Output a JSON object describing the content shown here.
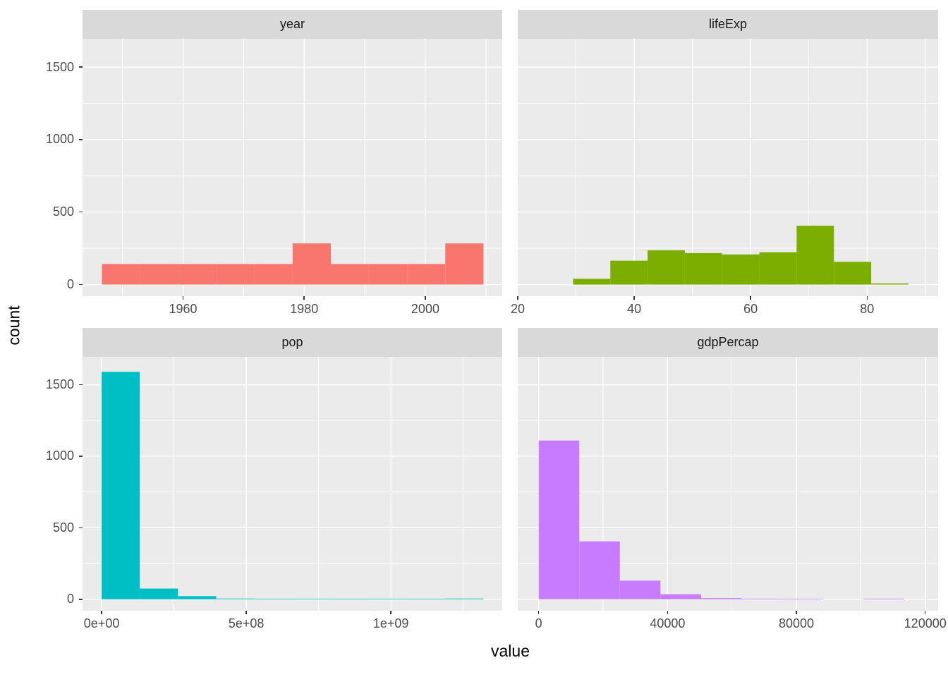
{
  "figure": {
    "background": "#FFFFFF",
    "panel_background": "#EBEBEB",
    "strip_background": "#D9D9D9",
    "strip_text_color": "#1A1A1A",
    "grid_major_color": "#FFFFFF",
    "grid_minor_color": "#FFFFFF",
    "axis_text_color": "#4D4D4D",
    "axis_title_color": "#000000",
    "tick_mark_color": "#333333"
  },
  "axes": {
    "x_title": "value",
    "y_title": "count",
    "y_ticks": [
      0,
      500,
      1000,
      1500
    ],
    "y_tick_labels": [
      "0",
      "500",
      "1000",
      "1500"
    ],
    "y_minor": [
      250,
      750,
      1250
    ],
    "ylim": [
      -80,
      1695
    ]
  },
  "chart_data": [
    {
      "type": "bar",
      "subtype": "histogram",
      "facet": "year",
      "fill": "#F8766D",
      "xlim": [
        1943.4,
        2012.7
      ],
      "x_ticks": [
        1960,
        1980,
        2000
      ],
      "x_tick_labels": [
        "1960",
        "1980",
        "2000"
      ],
      "x_minor": [
        1950,
        1970,
        1990,
        2010
      ],
      "bins": [
        {
          "from": 1946.6,
          "to": 1952.9,
          "count": 142
        },
        {
          "from": 1952.9,
          "to": 1959.2,
          "count": 142
        },
        {
          "from": 1959.2,
          "to": 1965.5,
          "count": 142
        },
        {
          "from": 1965.5,
          "to": 1971.8,
          "count": 142
        },
        {
          "from": 1971.8,
          "to": 1978.1,
          "count": 142
        },
        {
          "from": 1978.1,
          "to": 1984.4,
          "count": 284
        },
        {
          "from": 1984.4,
          "to": 1990.7,
          "count": 142
        },
        {
          "from": 1990.7,
          "to": 1997.0,
          "count": 142
        },
        {
          "from": 1997.0,
          "to": 2003.3,
          "count": 142
        },
        {
          "from": 2003.3,
          "to": 2009.6,
          "count": 284
        }
      ]
    },
    {
      "type": "bar",
      "subtype": "histogram",
      "facet": "lifeExp",
      "fill": "#7CAE00",
      "xlim": [
        20,
        92.2
      ],
      "x_ticks": [
        20,
        40,
        60,
        80
      ],
      "x_tick_labels": [
        "20",
        "40",
        "60",
        "80"
      ],
      "x_minor": [
        30,
        50,
        70,
        90
      ],
      "bins": [
        {
          "from": 29.5,
          "to": 35.9,
          "count": 40
        },
        {
          "from": 35.9,
          "to": 42.3,
          "count": 165
        },
        {
          "from": 42.3,
          "to": 48.7,
          "count": 237
        },
        {
          "from": 48.7,
          "to": 55.1,
          "count": 217
        },
        {
          "from": 55.1,
          "to": 61.5,
          "count": 208
        },
        {
          "from": 61.5,
          "to": 67.9,
          "count": 223
        },
        {
          "from": 67.9,
          "to": 74.3,
          "count": 406
        },
        {
          "from": 74.3,
          "to": 80.7,
          "count": 157
        },
        {
          "from": 80.7,
          "to": 87.1,
          "count": 8
        }
      ]
    },
    {
      "type": "bar",
      "subtype": "histogram",
      "facet": "pop",
      "fill": "#00BFC4",
      "xlim": [
        -66000000,
        1385000000
      ],
      "x_ticks": [
        0,
        500000000,
        1000000000
      ],
      "x_tick_labels": [
        "0e+00",
        "5e+08",
        "1e+09"
      ],
      "x_minor": [
        250000000,
        750000000,
        1250000000
      ],
      "bins": [
        {
          "from": 0,
          "to": 132000000,
          "count": 1590
        },
        {
          "from": 132000000,
          "to": 264000000,
          "count": 75
        },
        {
          "from": 264000000,
          "to": 396000000,
          "count": 22
        },
        {
          "from": 396000000,
          "to": 528000000,
          "count": 5
        },
        {
          "from": 528000000,
          "to": 660000000,
          "count": 3
        },
        {
          "from": 660000000,
          "to": 792000000,
          "count": 4
        },
        {
          "from": 792000000,
          "to": 924000000,
          "count": 3
        },
        {
          "from": 924000000,
          "to": 1056000000,
          "count": 4
        },
        {
          "from": 1056000000,
          "to": 1188000000,
          "count": 3
        },
        {
          "from": 1188000000,
          "to": 1320000000,
          "count": 5
        }
      ]
    },
    {
      "type": "bar",
      "subtype": "histogram",
      "facet": "gdpPercap",
      "fill": "#C77CFF",
      "xlim": [
        -6500,
        124000
      ],
      "x_ticks": [
        0,
        40000,
        80000,
        120000
      ],
      "x_tick_labels": [
        "0",
        "40000",
        "80000",
        "120000"
      ],
      "x_minor": [
        20000,
        60000,
        100000
      ],
      "bins": [
        {
          "from": 0,
          "to": 12600,
          "count": 1110
        },
        {
          "from": 12600,
          "to": 25200,
          "count": 405
        },
        {
          "from": 25200,
          "to": 37800,
          "count": 130
        },
        {
          "from": 37800,
          "to": 50400,
          "count": 35
        },
        {
          "from": 50400,
          "to": 63000,
          "count": 8
        },
        {
          "from": 63000,
          "to": 75600,
          "count": 4
        },
        {
          "from": 75600,
          "to": 88200,
          "count": 3
        },
        {
          "from": 88200,
          "to": 100800,
          "count": 0
        },
        {
          "from": 100800,
          "to": 113400,
          "count": 4
        }
      ]
    }
  ]
}
